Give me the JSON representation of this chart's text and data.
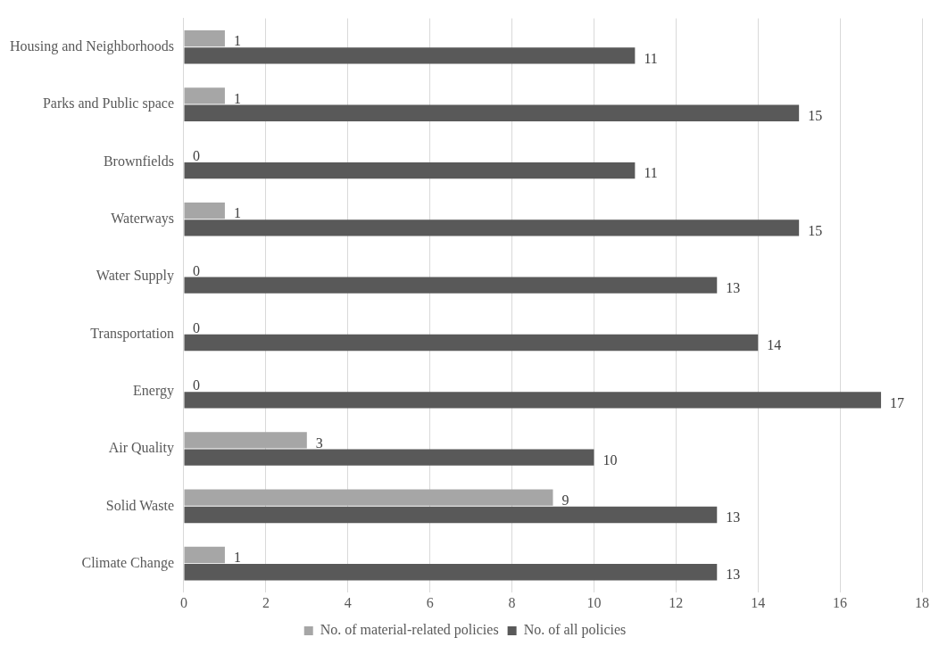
{
  "chart_data": {
    "type": "bar",
    "orientation": "horizontal",
    "categories": [
      "Housing and Neighborhoods",
      "Parks and Public space",
      "Brownfields",
      "Waterways",
      "Water Supply",
      "Transportation",
      "Energy",
      "Air Quality",
      "Solid Waste",
      "Climate Change"
    ],
    "series": [
      {
        "name": "No. of material-related policies",
        "color": "#a6a6a6",
        "values": [
          1,
          1,
          0,
          1,
          0,
          0,
          0,
          3,
          9,
          1
        ]
      },
      {
        "name": "No. of all policies",
        "color": "#595959",
        "values": [
          11,
          15,
          11,
          15,
          13,
          14,
          17,
          10,
          13,
          13
        ]
      }
    ],
    "xlim": [
      0,
      18
    ],
    "xticks": [
      0,
      2,
      4,
      6,
      8,
      10,
      12,
      14,
      16,
      18
    ],
    "grid": "x",
    "legend": "bottom",
    "data_labels": true
  }
}
